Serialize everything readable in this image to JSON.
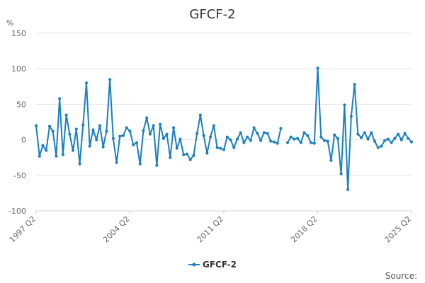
{
  "colors": {
    "series": "#1a7fbd",
    "grid": "#e6e6e6",
    "axis": "#d0d0d0"
  },
  "chart_data": {
    "type": "line",
    "title": "GFCF-2",
    "ylabel": "%",
    "ylim": [
      -100,
      150
    ],
    "yticks": [
      150,
      100,
      50,
      0,
      -50,
      -100
    ],
    "grid": true,
    "legend_position": "bottom-center",
    "source_label": "Source:",
    "x_start": "1997 Q2",
    "x_end": "2025 Q2",
    "xtick_labels": [
      "1997 Q2",
      "2004 Q2",
      "2011 Q2",
      "2018 Q2",
      "2025 Q2"
    ],
    "series": [
      {
        "name": "GFCF-2",
        "values": [
          20,
          -23,
          -8,
          -15,
          19,
          12,
          -23,
          58,
          -21,
          35,
          8,
          -15,
          15,
          -34,
          21,
          80,
          -9,
          14,
          0,
          20,
          -10,
          12,
          85,
          2,
          -32,
          5,
          6,
          17,
          12,
          -7,
          -4,
          -34,
          13,
          31,
          8,
          20,
          -36,
          22,
          2,
          8,
          -25,
          17,
          -12,
          1,
          -21,
          -20,
          -28,
          -22,
          9,
          35,
          6,
          -19,
          4,
          20,
          -11,
          -12,
          -14,
          4,
          0,
          -11,
          1,
          10,
          -4,
          4,
          -1,
          17,
          9,
          -1,
          10,
          9,
          -2,
          -3,
          -5,
          16,
          null,
          -4,
          4,
          1,
          2,
          -4,
          10,
          6,
          -4,
          -5,
          101,
          4,
          -1,
          -2,
          -29,
          7,
          2,
          -48,
          49,
          -70,
          33,
          78,
          8,
          3,
          10,
          1,
          10,
          -2,
          -11,
          -9,
          -1,
          1,
          -4,
          2,
          8,
          0,
          9,
          2,
          -3
        ]
      }
    ]
  }
}
